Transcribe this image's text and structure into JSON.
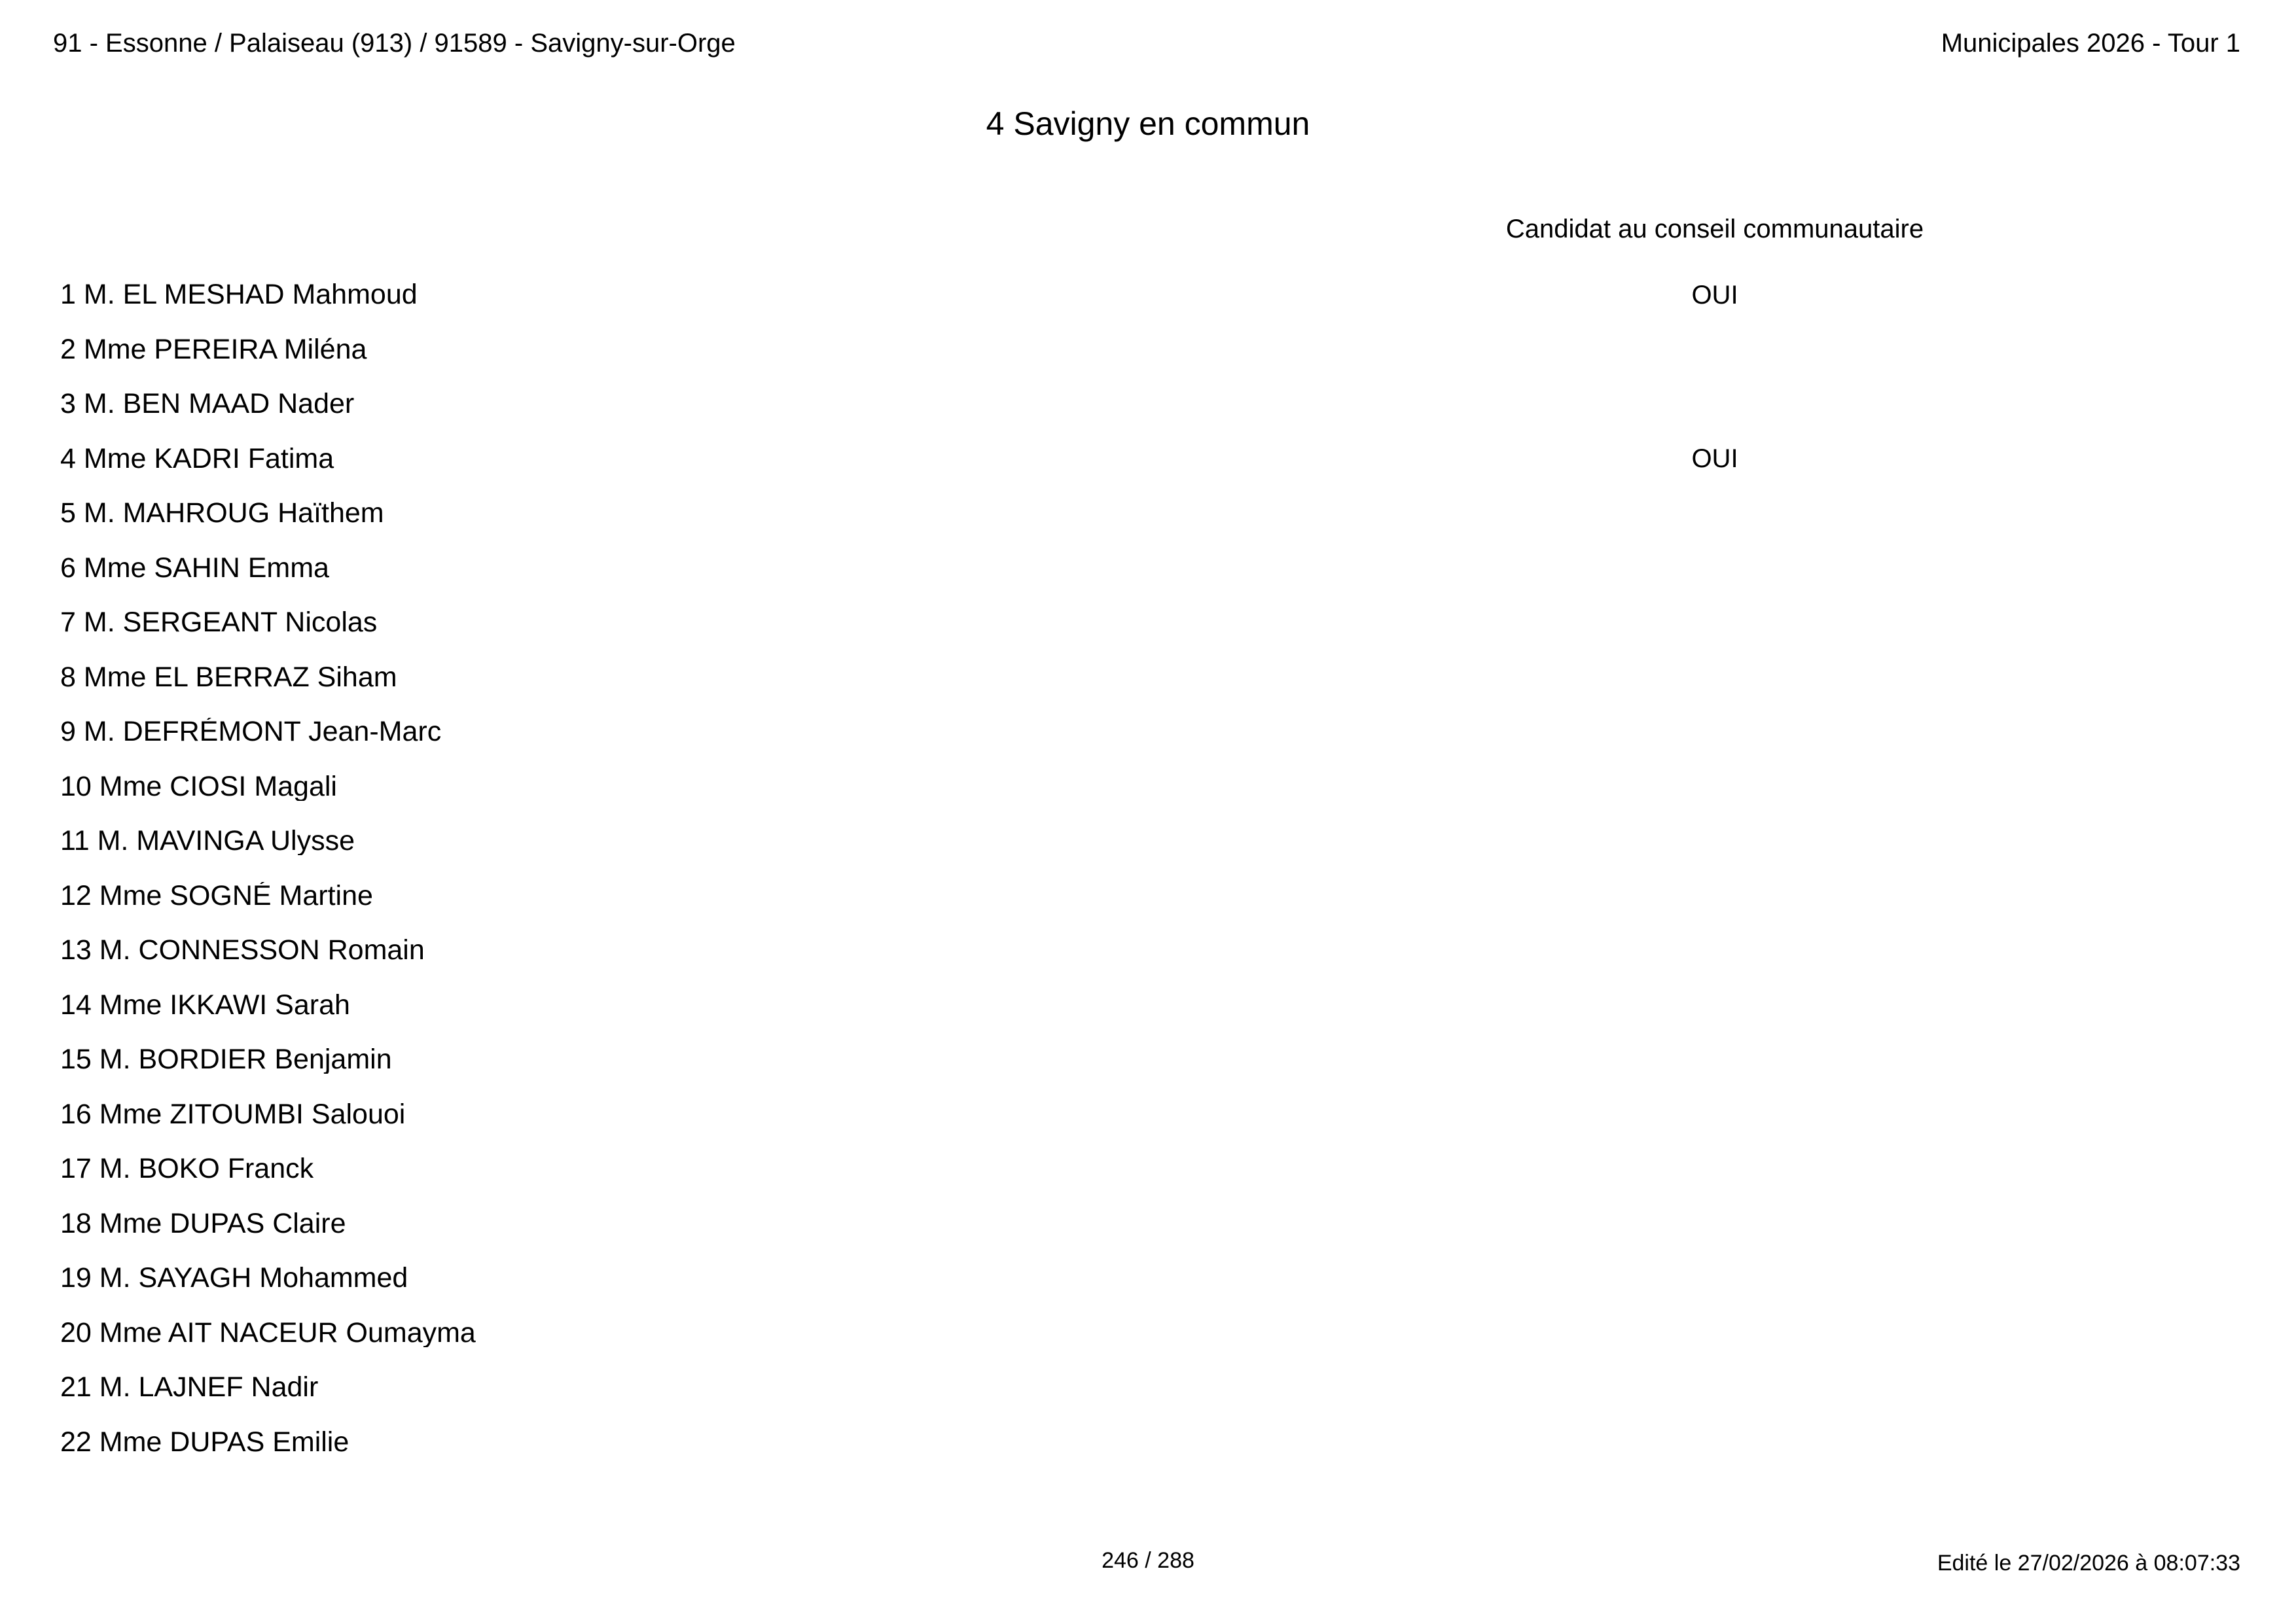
{
  "header": {
    "left": "91 - Essonne / Palaiseau (913) / 91589 - Savigny-sur-Orge",
    "right": "Municipales 2026 - Tour 1"
  },
  "title": "4 Savigny en commun",
  "table": {
    "column_header": "Candidat au conseil communautaire",
    "rows": [
      {
        "num": "1",
        "name": "M. EL MESHAD Mahmoud",
        "conseil": "OUI"
      },
      {
        "num": "2",
        "name": "Mme PEREIRA Miléna",
        "conseil": ""
      },
      {
        "num": "3",
        "name": "M. BEN MAAD Nader",
        "conseil": ""
      },
      {
        "num": "4",
        "name": "Mme KADRI Fatima",
        "conseil": "OUI"
      },
      {
        "num": "5",
        "name": "M. MAHROUG Haïthem",
        "conseil": ""
      },
      {
        "num": "6",
        "name": "Mme SAHIN Emma",
        "conseil": ""
      },
      {
        "num": "7",
        "name": "M. SERGEANT Nicolas",
        "conseil": ""
      },
      {
        "num": "8",
        "name": "Mme EL BERRAZ Siham",
        "conseil": ""
      },
      {
        "num": "9",
        "name": "M. DEFRÉMONT Jean-Marc",
        "conseil": ""
      },
      {
        "num": "10",
        "name": "Mme CIOSI Magali",
        "conseil": ""
      },
      {
        "num": "11",
        "name": "M. MAVINGA Ulysse",
        "conseil": ""
      },
      {
        "num": "12",
        "name": "Mme SOGNÉ Martine",
        "conseil": ""
      },
      {
        "num": "13",
        "name": "M. CONNESSON Romain",
        "conseil": ""
      },
      {
        "num": "14",
        "name": "Mme IKKAWI Sarah",
        "conseil": ""
      },
      {
        "num": "15",
        "name": "M. BORDIER Benjamin",
        "conseil": ""
      },
      {
        "num": "16",
        "name": "Mme ZITOUMBI Salouoi",
        "conseil": ""
      },
      {
        "num": "17",
        "name": "M. BOKO Franck",
        "conseil": ""
      },
      {
        "num": "18",
        "name": "Mme DUPAS Claire",
        "conseil": ""
      },
      {
        "num": "19",
        "name": "M. SAYAGH Mohammed",
        "conseil": ""
      },
      {
        "num": "20",
        "name": "Mme AIT NACEUR Oumayma",
        "conseil": ""
      },
      {
        "num": "21",
        "name": "M. LAJNEF Nadir",
        "conseil": ""
      },
      {
        "num": "22",
        "name": "Mme DUPAS Emilie",
        "conseil": ""
      }
    ]
  },
  "footer": {
    "page": "246 / 288",
    "edited": "Edité le 27/02/2026 à 08:07:33"
  }
}
